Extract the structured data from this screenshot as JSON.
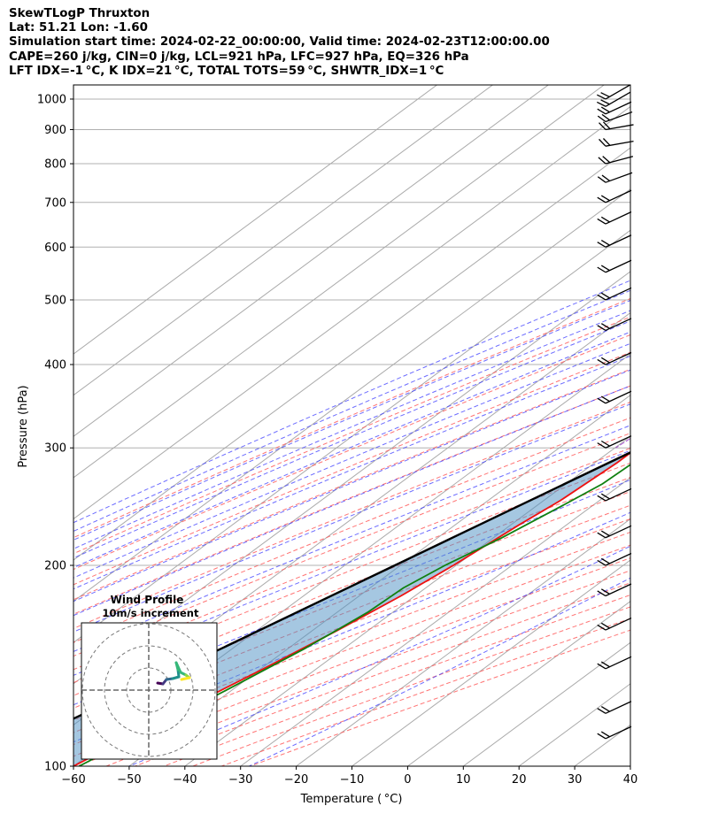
{
  "header": {
    "line1": "SkewTLogP Thruxton",
    "line2": "Lat: 51.21   Lon: -1.60",
    "line3": "Simulation start time: 2024-02-22_00:00:00, Valid time: 2024-02-23T12:00:00.00",
    "line4": "CAPE=260 j/kg, CIN=0 j/kg, LCL=921 hPa, LFC=927 hPa, EQ=326 hPa",
    "line5": "LFT IDX=-1 °C, K IDX=21 °C, TOTAL TOTS=59 °C, SHWTR_IDX=1 °C"
  },
  "chart_data": {
    "type": "line",
    "title": "SkewTLogP Thruxton",
    "xlabel": "Temperature ( °C)",
    "ylabel": "Pressure (hPa)",
    "xlim": [
      -60,
      40
    ],
    "ylim": [
      1050,
      100
    ],
    "y_scale": "log",
    "x_ticks": [
      "−60",
      "−50",
      "−40",
      "−30",
      "−20",
      "−10",
      "0",
      "10",
      "20",
      "30",
      "40"
    ],
    "x_tick_values": [
      -60,
      -50,
      -40,
      -30,
      -20,
      -10,
      0,
      10,
      20,
      30,
      40
    ],
    "y_ticks": [
      "100",
      "200",
      "300",
      "400",
      "500",
      "600",
      "700",
      "800",
      "900",
      "1000"
    ],
    "y_tick_values": [
      100,
      200,
      300,
      400,
      500,
      600,
      700,
      800,
      900,
      1000
    ],
    "grid": true,
    "series": [
      {
        "role": "temperature",
        "color": "#ee1111",
        "points": [
          [
            1000,
            7.5
          ],
          [
            960,
            5.5
          ],
          [
            925,
            4.5
          ],
          [
            900,
            3.7
          ],
          [
            850,
            1.5
          ],
          [
            800,
            -0.8
          ],
          [
            750,
            -3.2
          ],
          [
            700,
            -5.7
          ],
          [
            650,
            -8.4
          ],
          [
            600,
            -11.3
          ],
          [
            550,
            -14.3
          ],
          [
            500,
            -17.5
          ],
          [
            450,
            -21.0
          ],
          [
            400,
            -24.7
          ],
          [
            350,
            -29.3
          ],
          [
            326,
            -32.8
          ],
          [
            300,
            -36.0
          ],
          [
            285,
            -36.0
          ],
          [
            250,
            -37.0
          ],
          [
            230,
            -38.5
          ],
          [
            200,
            -40.5
          ],
          [
            180,
            -42.5
          ],
          [
            160,
            -45.5
          ],
          [
            140,
            -49.5
          ],
          [
            120,
            -54.5
          ],
          [
            100,
            -60.0
          ]
        ]
      },
      {
        "role": "dewpoint",
        "color": "#108010",
        "points": [
          [
            1000,
            5.5
          ],
          [
            950,
            5.0
          ],
          [
            925,
            2.0
          ],
          [
            900,
            -1.0
          ],
          [
            850,
            -6.5
          ],
          [
            800,
            -10.0
          ],
          [
            750,
            -12.2
          ],
          [
            700,
            -14.3
          ],
          [
            650,
            -15.5
          ],
          [
            600,
            -18.0
          ],
          [
            550,
            -22.0
          ],
          [
            500,
            -26.5
          ],
          [
            470,
            -32.0
          ],
          [
            420,
            -35.0
          ],
          [
            380,
            -37.5
          ],
          [
            350,
            -39.0
          ],
          [
            330,
            -41.0
          ],
          [
            310,
            -37.0
          ],
          [
            290,
            -33.0
          ],
          [
            265,
            -33.5
          ],
          [
            245,
            -35.5
          ],
          [
            220,
            -38.5
          ],
          [
            200,
            -42.0
          ],
          [
            185,
            -44.0
          ],
          [
            170,
            -44.5
          ],
          [
            150,
            -47.0
          ],
          [
            130,
            -51.0
          ],
          [
            100,
            -59.0
          ]
        ]
      },
      {
        "role": "parcel",
        "color": "#000000",
        "points": [
          [
            970,
            9.0
          ],
          [
            940,
            7.0
          ],
          [
            921,
            6.0
          ],
          [
            900,
            5.5
          ],
          [
            850,
            3.4
          ],
          [
            800,
            1.3
          ],
          [
            750,
            -1.0
          ],
          [
            700,
            -3.5
          ],
          [
            650,
            -6.3
          ],
          [
            600,
            -9.2
          ],
          [
            550,
            -12.5
          ],
          [
            500,
            -16.0
          ],
          [
            450,
            -20.0
          ],
          [
            400,
            -24.5
          ],
          [
            350,
            -29.5
          ],
          [
            326,
            -32.5
          ],
          [
            300,
            -35.5
          ],
          [
            250,
            -42.5
          ],
          [
            200,
            -51.0
          ],
          [
            150,
            -62.0
          ],
          [
            100,
            -78.0
          ]
        ]
      }
    ],
    "wind_barbs": [
      {
        "p": 1000,
        "spd": 20,
        "dir": 240
      },
      {
        "p": 975,
        "spd": 20,
        "dir": 240
      },
      {
        "p": 950,
        "spd": 20,
        "dir": 245
      },
      {
        "p": 925,
        "spd": 20,
        "dir": 250
      },
      {
        "p": 900,
        "spd": 20,
        "dir": 260
      },
      {
        "p": 850,
        "spd": 20,
        "dir": 260
      },
      {
        "p": 800,
        "spd": 20,
        "dir": 255
      },
      {
        "p": 750,
        "spd": 20,
        "dir": 250
      },
      {
        "p": 700,
        "spd": 20,
        "dir": 245
      },
      {
        "p": 650,
        "spd": 20,
        "dir": 245
      },
      {
        "p": 600,
        "spd": 20,
        "dir": 245
      },
      {
        "p": 550,
        "spd": 20,
        "dir": 245
      },
      {
        "p": 500,
        "spd": 20,
        "dir": 245
      },
      {
        "p": 450,
        "spd": 20,
        "dir": 245
      },
      {
        "p": 400,
        "spd": 20,
        "dir": 245
      },
      {
        "p": 350,
        "spd": 20,
        "dir": 245
      },
      {
        "p": 300,
        "spd": 20,
        "dir": 245
      },
      {
        "p": 250,
        "spd": 20,
        "dir": 245
      },
      {
        "p": 220,
        "spd": 20,
        "dir": 245
      },
      {
        "p": 200,
        "spd": 20,
        "dir": 245
      },
      {
        "p": 180,
        "spd": 20,
        "dir": 245
      },
      {
        "p": 160,
        "spd": 20,
        "dir": 245
      },
      {
        "p": 140,
        "spd": 20,
        "dir": 245
      },
      {
        "p": 120,
        "spd": 20,
        "dir": 245
      },
      {
        "p": 110,
        "spd": 20,
        "dir": 245
      }
    ],
    "inset": {
      "title": "Wind Profile",
      "subtitle": "10m/s increment",
      "hodograph_color": "#2a9b8f"
    }
  }
}
